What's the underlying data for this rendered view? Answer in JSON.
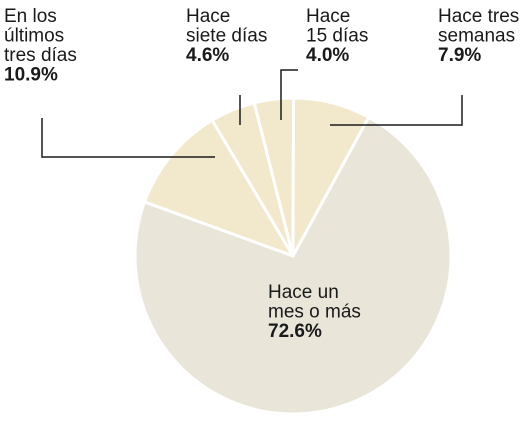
{
  "chart_data": {
    "type": "pie",
    "categories": [
      "En los últimos tres días",
      "Hace siete días",
      "Hace 15 días",
      "Hace tres semanas",
      "Hace un mes o más"
    ],
    "values": [
      10.9,
      4.6,
      4.0,
      7.9,
      72.6
    ],
    "value_labels": [
      "10.9%",
      "4.6%",
      "4.0%",
      "7.9%",
      "72.6%"
    ],
    "colors": [
      "#f2e8cc",
      "#f2e8cc",
      "#f2e8cc",
      "#f2e8cc",
      "#e9e5d9"
    ]
  }
}
